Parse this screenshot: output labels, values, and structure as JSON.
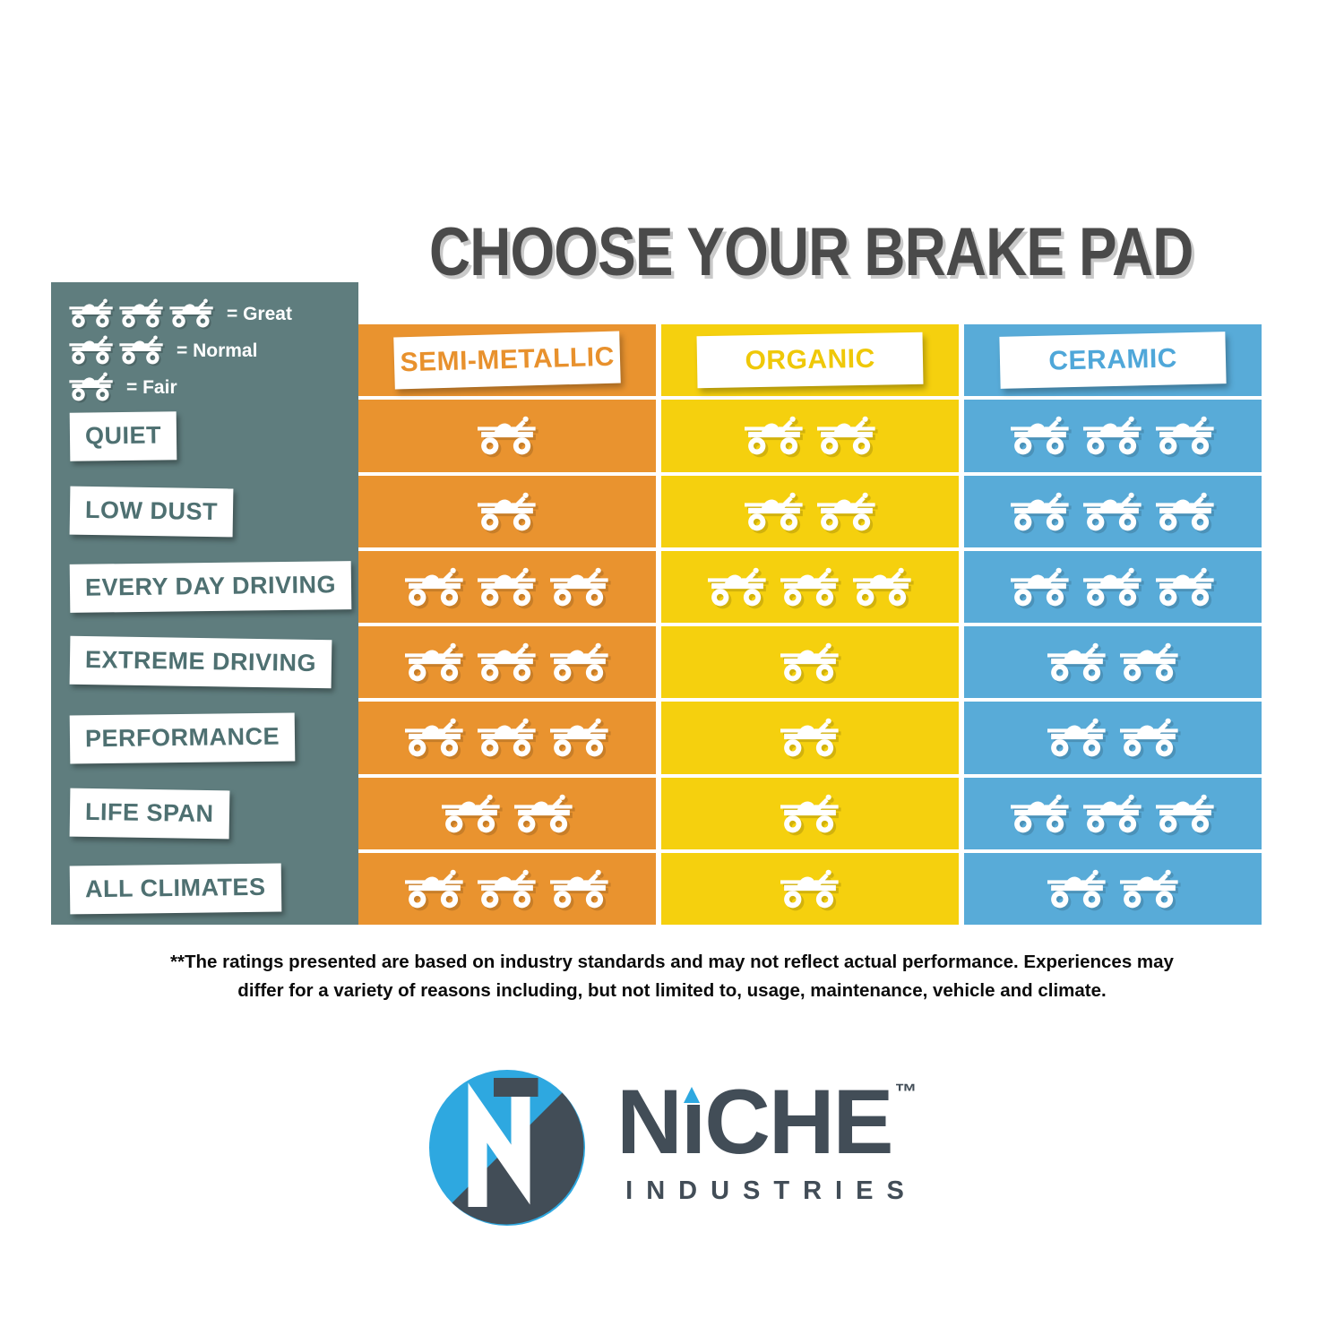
{
  "title": "CHOOSE YOUR BRAKE PAD",
  "legend": {
    "items": [
      {
        "count": 3,
        "label": "= Great"
      },
      {
        "count": 2,
        "label": "= Normal"
      },
      {
        "count": 1,
        "label": "= Fair"
      }
    ]
  },
  "columns": [
    {
      "label": "SEMI-METALLIC",
      "bg": "#E9932F",
      "text_color": "#E8912D"
    },
    {
      "label": "ORGANIC",
      "bg": "#F5D00E",
      "text_color": "#EFC808"
    },
    {
      "label": "CERAMIC",
      "bg": "#58ABD8",
      "text_color": "#4FA7D9"
    }
  ],
  "rows": [
    {
      "label": "QUIET",
      "ratings": [
        1,
        2,
        3
      ]
    },
    {
      "label": "LOW DUST",
      "ratings": [
        1,
        2,
        3
      ]
    },
    {
      "label": "EVERY DAY DRIVING",
      "ratings": [
        3,
        3,
        3
      ]
    },
    {
      "label": "EXTREME DRIVING",
      "ratings": [
        3,
        1,
        2
      ]
    },
    {
      "label": "PERFORMANCE",
      "ratings": [
        3,
        1,
        2
      ]
    },
    {
      "label": "LIFE SPAN",
      "ratings": [
        2,
        1,
        3
      ]
    },
    {
      "label": "ALL CLIMATES",
      "ratings": [
        3,
        1,
        2
      ]
    }
  ],
  "disclaimer": "**The ratings presented are based on industry standards and may not reflect actual performance. Experiences may differ for a variety of reasons including, but not limited to, usage, maintenance, vehicle and climate.",
  "logo": {
    "prefix": "N",
    "i_char": "ı",
    "suffix": "CHE",
    "tm": "™",
    "industries": "INDUSTRIES"
  },
  "colors": {
    "orange": "#E9932F",
    "yellow": "#F5D00E",
    "blue": "#58ABD8",
    "sidebar_teal": "#5F7D7E",
    "label_teal": "#4E7071",
    "title_gray": "#4A4A4A",
    "logo_dark": "#424D57",
    "logo_blue": "#2EA8E0"
  },
  "chart_data": {
    "type": "table",
    "title": "CHOOSE YOUR BRAKE PAD",
    "categories": [
      "QUIET",
      "LOW DUST",
      "EVERY DAY DRIVING",
      "EXTREME DRIVING",
      "PERFORMANCE",
      "LIFE SPAN",
      "ALL CLIMATES"
    ],
    "series": [
      {
        "name": "SEMI-METALLIC",
        "values": [
          1,
          1,
          3,
          3,
          3,
          2,
          3
        ]
      },
      {
        "name": "ORGANIC",
        "values": [
          2,
          2,
          3,
          1,
          1,
          1,
          1
        ]
      },
      {
        "name": "CERAMIC",
        "values": [
          3,
          3,
          3,
          2,
          2,
          3,
          2
        ]
      }
    ],
    "rating_scale": {
      "1": "Fair",
      "2": "Normal",
      "3": "Great"
    },
    "legend_position": "top-left"
  }
}
